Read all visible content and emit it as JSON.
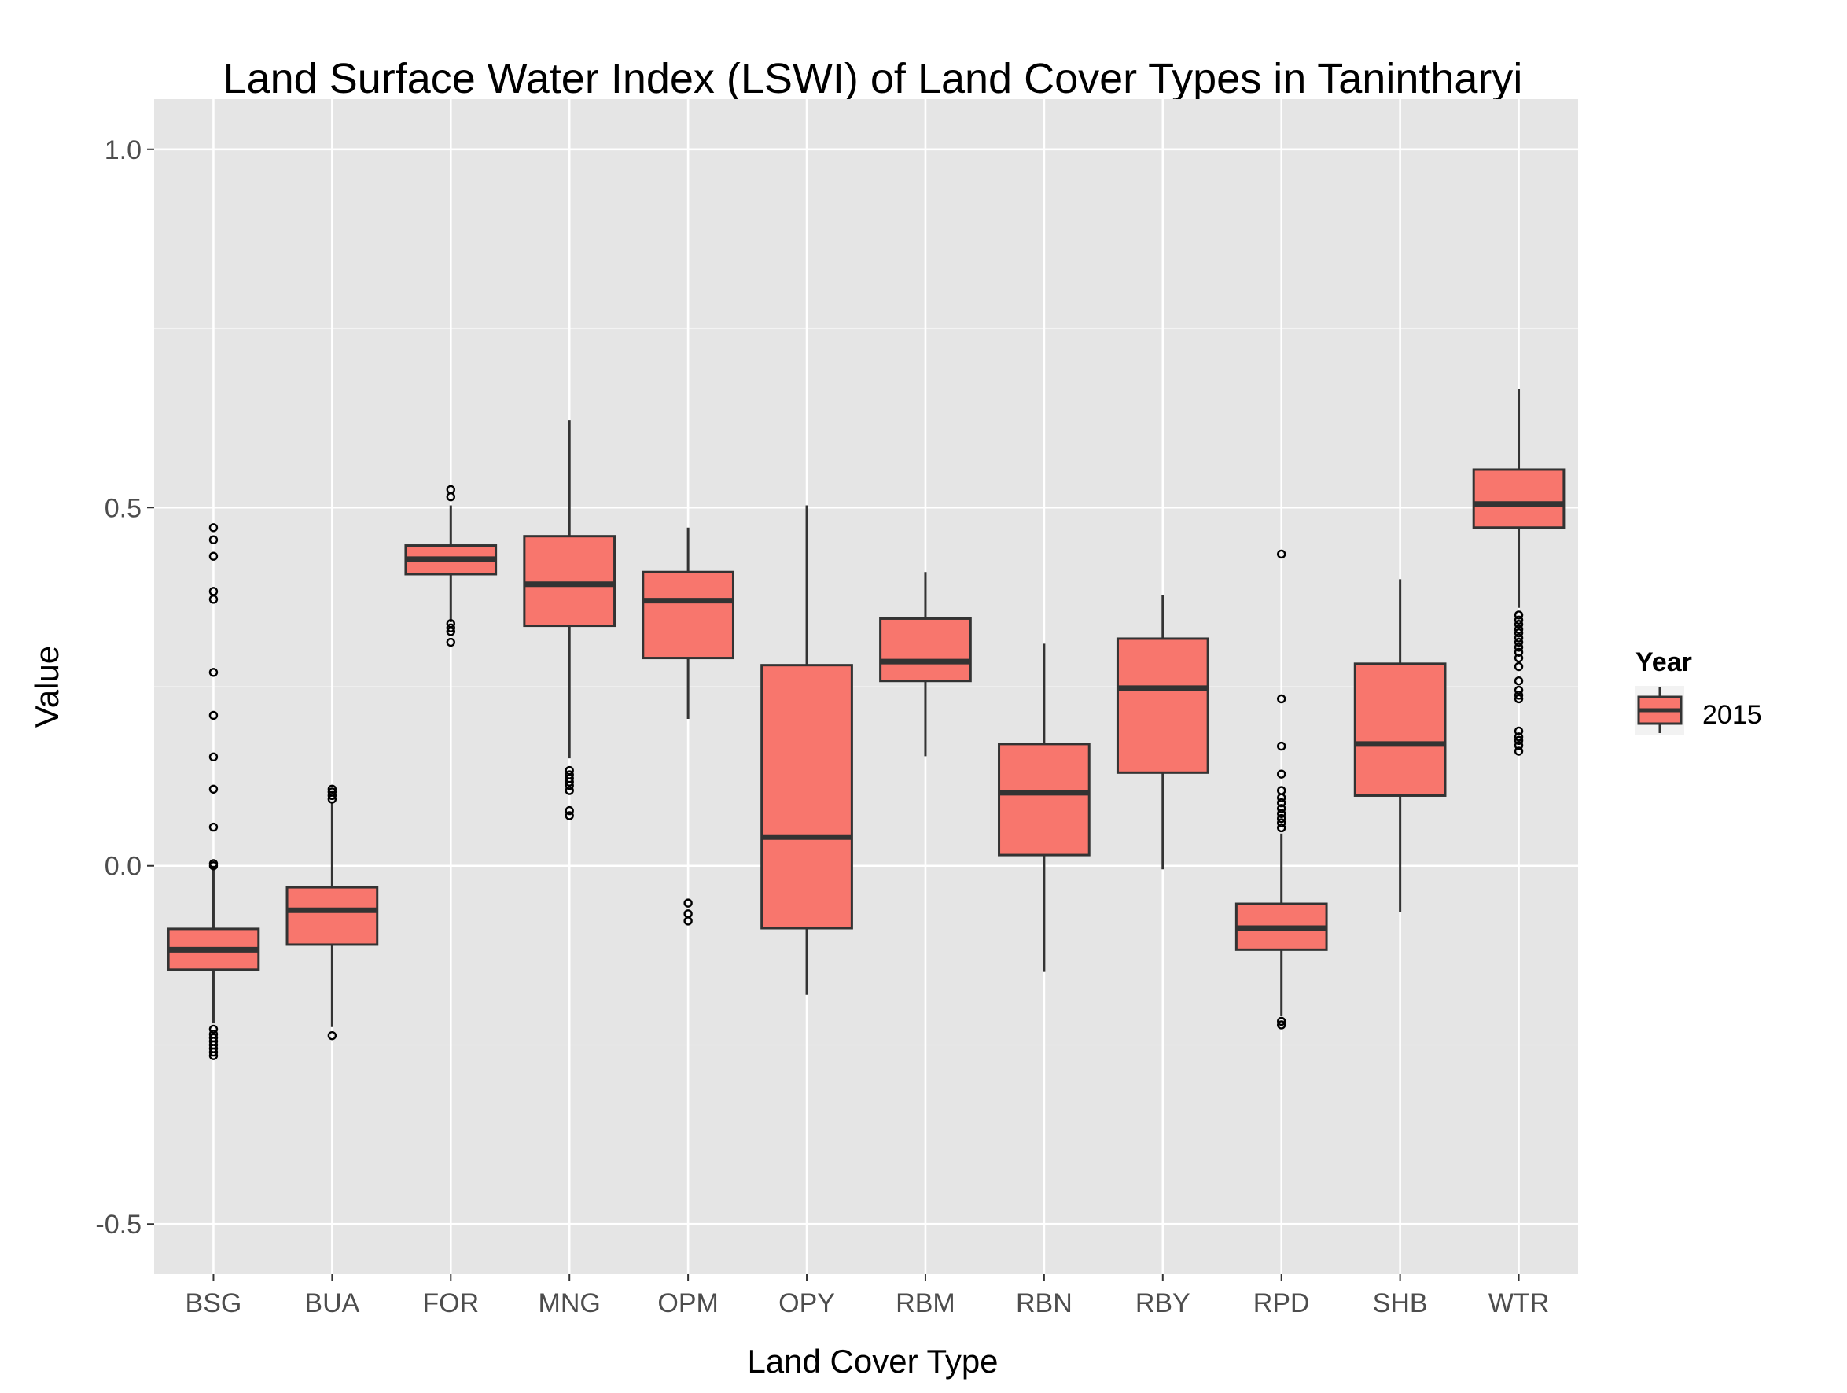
{
  "chart_data": {
    "type": "box",
    "title": "Land Surface Water Index (LSWI) of Land Cover Types in Tanintharyi",
    "xlabel": "Land Cover Type",
    "ylabel": "Value",
    "ylim": [
      -0.57,
      1.07
    ],
    "yticks": [
      -0.5,
      0.0,
      0.5,
      1.0
    ],
    "ytick_labels": [
      "-0.5",
      "0.0",
      "0.5",
      "1.0"
    ],
    "grid": true,
    "legend": {
      "title": "Year",
      "placement": "right",
      "entries": [
        "2015"
      ]
    },
    "colors": {
      "fill": "#F8766D",
      "panel": "#E5E5E5",
      "grid": "#FFFFFF",
      "outline": "#333333"
    },
    "categories": [
      "BSG",
      "BUA",
      "FOR",
      "MNG",
      "OPM",
      "OPY",
      "RBM",
      "RBN",
      "RBY",
      "RPD",
      "SHB",
      "WTR"
    ],
    "series": [
      {
        "name": "2015",
        "boxes": [
          {
            "lower": 0.0,
            "q1": -0.145,
            "median": -0.117,
            "q3": -0.088,
            "upper": -0.088,
            "whisker_low": -0.22,
            "whisker_high": 0.0,
            "outliers": [
              0.472,
              0.455,
              0.432,
              0.383,
              0.372,
              0.27,
              0.21,
              0.152,
              0.107,
              0.054,
              0.003,
              0.0,
              -0.228,
              -0.235,
              -0.24,
              -0.245,
              -0.25,
              -0.255,
              -0.26,
              -0.265
            ]
          },
          {
            "q1": -0.11,
            "median": -0.062,
            "q3": -0.03,
            "whisker_low": -0.225,
            "whisker_high": 0.09,
            "outliers": [
              0.107,
              0.103,
              0.098,
              0.093,
              -0.237
            ]
          },
          {
            "q1": 0.407,
            "median": 0.428,
            "q3": 0.447,
            "whisker_low": 0.34,
            "whisker_high": 0.503,
            "outliers": [
              0.525,
              0.515,
              0.338,
              0.332,
              0.327,
              0.312
            ]
          },
          {
            "q1": 0.335,
            "median": 0.393,
            "q3": 0.46,
            "whisker_low": 0.15,
            "whisker_high": 0.622,
            "outliers": [
              0.133,
              0.127,
              0.122,
              0.117,
              0.112,
              0.105,
              0.077,
              0.07
            ]
          },
          {
            "q1": 0.29,
            "median": 0.37,
            "q3": 0.41,
            "whisker_low": 0.205,
            "whisker_high": 0.472,
            "outliers": [
              -0.052,
              -0.067,
              -0.077
            ]
          },
          {
            "q1": -0.087,
            "median": 0.04,
            "q3": 0.28,
            "whisker_low": -0.18,
            "whisker_high": 0.503,
            "outliers": []
          },
          {
            "q1": 0.258,
            "median": 0.285,
            "q3": 0.345,
            "whisker_low": 0.153,
            "whisker_high": 0.41,
            "outliers": []
          },
          {
            "q1": 0.015,
            "median": 0.102,
            "q3": 0.17,
            "whisker_low": -0.148,
            "whisker_high": 0.31,
            "outliers": []
          },
          {
            "q1": 0.13,
            "median": 0.248,
            "q3": 0.317,
            "whisker_low": -0.005,
            "whisker_high": 0.378,
            "outliers": []
          },
          {
            "q1": -0.117,
            "median": -0.087,
            "q3": -0.053,
            "whisker_low": -0.21,
            "whisker_high": 0.045,
            "outliers": [
              0.435,
              0.233,
              0.167,
              0.128,
              0.105,
              0.095,
              0.088,
              0.08,
              0.073,
              0.066,
              0.06,
              0.053,
              -0.217,
              -0.222
            ]
          },
          {
            "q1": 0.098,
            "median": 0.17,
            "q3": 0.282,
            "whisker_low": -0.065,
            "whisker_high": 0.4,
            "outliers": []
          },
          {
            "q1": 0.472,
            "median": 0.505,
            "q3": 0.553,
            "whisker_low": 0.36,
            "whisker_high": 0.665,
            "outliers": [
              0.35,
              0.343,
              0.337,
              0.33,
              0.325,
              0.318,
              0.312,
              0.305,
              0.298,
              0.29,
              0.278,
              0.258,
              0.245,
              0.238,
              0.233,
              0.188,
              0.18,
              0.175,
              0.168,
              0.16
            ]
          }
        ]
      }
    ]
  }
}
